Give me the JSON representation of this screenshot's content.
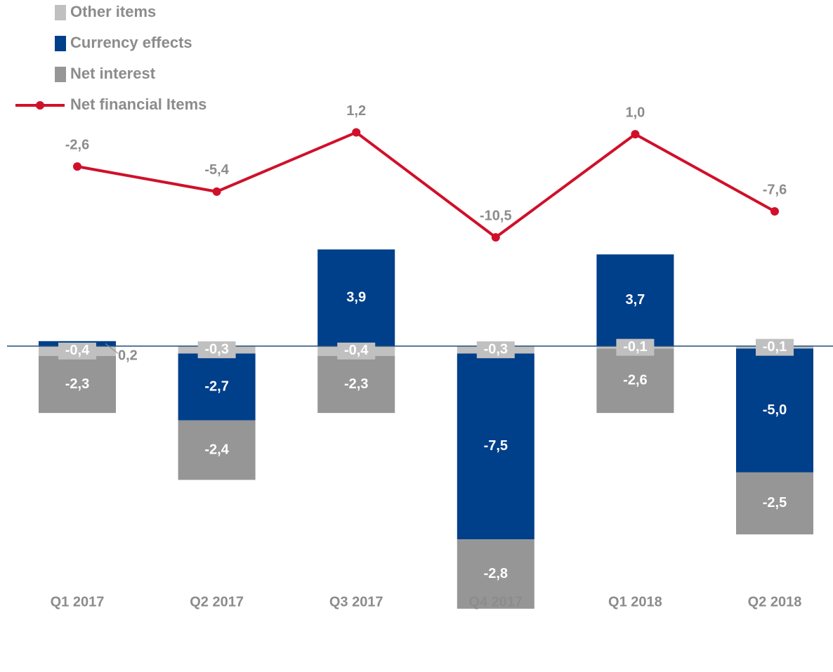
{
  "chart_data": {
    "type": "stacked-bar-line",
    "categories": [
      "Q1 2017",
      "Q2 2017",
      "Q3 2017",
      "Q4 2017",
      "Q1 2018",
      "Q2 2018"
    ],
    "ylim": [
      -11,
      10
    ],
    "y2lim": [
      -53,
      5
    ],
    "series": [
      {
        "name": "Other items",
        "color": "#c0c0c0",
        "values": [
          -0.4,
          -0.3,
          -0.4,
          -0.3,
          -0.1,
          -0.1
        ],
        "value_labels": [
          "-0,4",
          "-0,3",
          "-0,4",
          "-0,3",
          "-0,1",
          "-0,1"
        ]
      },
      {
        "name": "Currency effects",
        "color": "#003f8a",
        "values": [
          0.2,
          -2.7,
          3.9,
          -7.5,
          3.7,
          -5.0
        ],
        "value_labels": [
          "0,2",
          "-2,7",
          "3,9",
          "-7,5",
          "3,7",
          "-5,0"
        ]
      },
      {
        "name": "Net interest",
        "color": "#969696",
        "values": [
          -2.3,
          -2.4,
          -2.3,
          -2.8,
          -2.6,
          -2.5
        ],
        "value_labels": [
          "-2,3",
          "-2,4",
          "-2,3",
          "-2,8",
          "-2,6",
          "-2,5"
        ]
      },
      {
        "name": "Net financial Items",
        "color": "#d0102a",
        "type": "line",
        "axis": "y2",
        "values": [
          -2.6,
          -5.4,
          1.2,
          -10.5,
          1.0,
          -7.6
        ],
        "value_labels": [
          "-2,6",
          "-5,4",
          "1,2",
          "-10,5",
          "1,0",
          "-7,6"
        ]
      }
    ]
  }
}
